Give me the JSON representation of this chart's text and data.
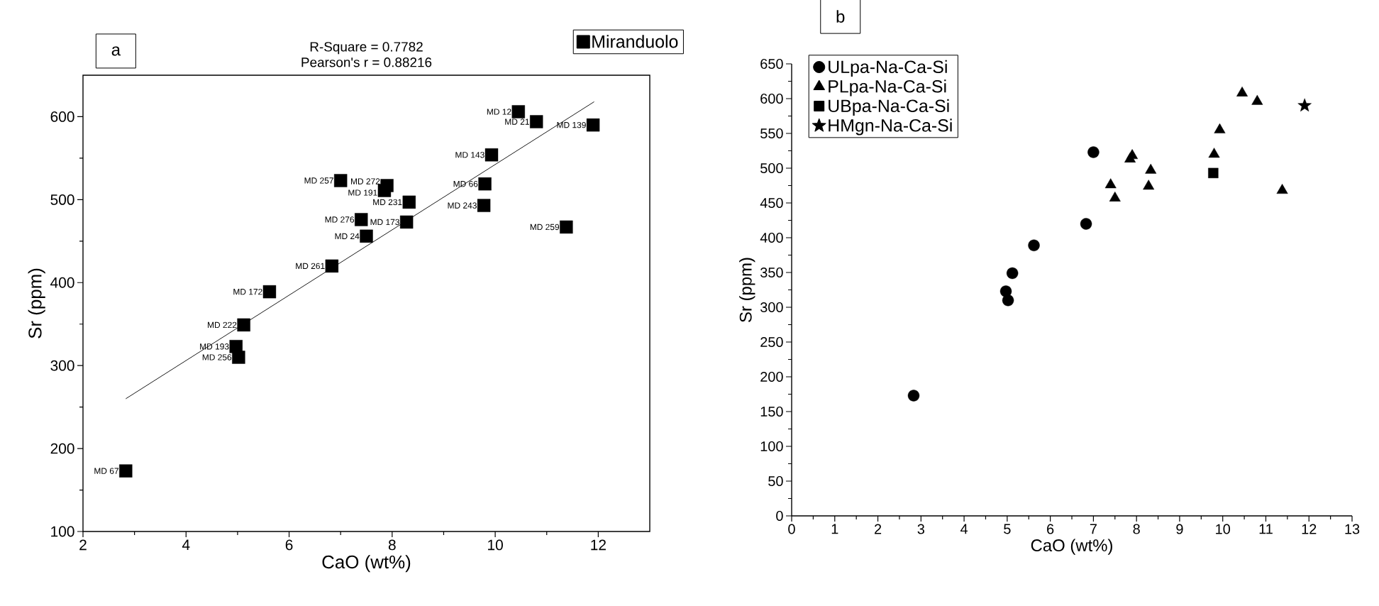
{
  "chart_data": [
    {
      "type": "scatter",
      "title": "R-Square = 0.7782",
      "subtitle": "Pearson's r = 0.88216",
      "xlabel": "CaO (wt%)",
      "ylabel": "Sr (ppm)",
      "xlim": [
        2,
        13
      ],
      "ylim": [
        100,
        650
      ],
      "xticks": [
        2,
        4,
        6,
        8,
        10,
        12
      ],
      "yticks": [
        100,
        200,
        300,
        400,
        500,
        600
      ],
      "legend": "top right",
      "series": [
        {
          "name": "Miranduolo",
          "type": "scatter",
          "marker": "square",
          "color": "#000000",
          "x": [
            10.45,
            10.8,
            11.9,
            9.93,
            9.8,
            9.78,
            11.38,
            7.0,
            7.9,
            7.85,
            8.33,
            7.4,
            8.28,
            7.5,
            6.83,
            5.62,
            5.12,
            4.97,
            5.02,
            2.83
          ],
          "values": [
            606,
            594,
            590,
            554,
            519,
            493,
            467,
            523,
            517,
            511,
            497,
            476,
            473,
            456,
            420,
            389,
            349,
            323,
            310,
            173
          ]
        },
        {
          "type": "line",
          "marker": "none",
          "color": "#000000",
          "x": [
            2.83,
            11.92
          ],
          "values": [
            260,
            618
          ]
        }
      ],
      "annotations": [
        "a",
        {
          "text": "MD 12",
          "x": 10.45,
          "y": 606
        },
        {
          "text": "MD 21",
          "x": 10.8,
          "y": 594
        },
        {
          "text": "MD 139",
          "x": 11.9,
          "y": 590
        },
        {
          "text": "MD 143",
          "x": 9.93,
          "y": 554
        },
        {
          "text": "MD 66",
          "x": 9.8,
          "y": 519
        },
        {
          "text": "MD 243",
          "x": 9.78,
          "y": 493
        },
        {
          "text": "MD 259",
          "x": 11.38,
          "y": 467
        },
        {
          "text": "MD 257",
          "x": 7.0,
          "y": 523
        },
        {
          "text": "MD 272",
          "x": 7.9,
          "y": 517
        },
        {
          "text": "MD 191",
          "x": 7.85,
          "y": 511
        },
        {
          "text": "MD 231",
          "x": 8.33,
          "y": 497
        },
        {
          "text": "MD 276",
          "x": 7.4,
          "y": 476
        },
        {
          "text": "MD 173",
          "x": 8.28,
          "y": 473
        },
        {
          "text": "MD 24",
          "x": 7.5,
          "y": 456
        },
        {
          "text": "MD 261",
          "x": 6.83,
          "y": 420
        },
        {
          "text": "MD 172",
          "x": 5.62,
          "y": 389
        },
        {
          "text": "MD 222",
          "x": 5.12,
          "y": 349
        },
        {
          "text": "MD 193",
          "x": 4.97,
          "y": 323
        },
        {
          "text": "MD 256",
          "x": 5.02,
          "y": 310
        },
        {
          "text": "MD 67",
          "x": 2.83,
          "y": 173
        }
      ]
    },
    {
      "type": "scatter",
      "xlabel": "CaO (wt%)",
      "ylabel": "Sr (ppm)",
      "xlim": [
        0,
        13
      ],
      "ylim": [
        0,
        650
      ],
      "xticks": [
        0,
        1,
        2,
        3,
        4,
        5,
        6,
        7,
        8,
        9,
        10,
        11,
        12,
        13
      ],
      "yticks": [
        0,
        50,
        100,
        150,
        200,
        250,
        300,
        350,
        400,
        450,
        500,
        550,
        600,
        650
      ],
      "legend": "top left",
      "series": [
        {
          "name": "ULpa-Na-Ca-Si",
          "type": "scatter",
          "marker": "circle",
          "color": "#000000",
          "x": [
            2.83,
            4.97,
            5.02,
            5.12,
            5.62,
            6.83,
            7.0
          ],
          "values": [
            173,
            323,
            310,
            349,
            389,
            420,
            523
          ]
        },
        {
          "name": "PLpa-Na-Ca-Si",
          "type": "scatter",
          "marker": "triangle",
          "color": "#000000",
          "x": [
            7.4,
            7.5,
            7.85,
            7.9,
            8.28,
            8.33,
            9.8,
            9.93,
            10.45,
            10.8,
            11.38
          ],
          "values": [
            476,
            457,
            513,
            518,
            474,
            497,
            520,
            555,
            608,
            596,
            468
          ]
        },
        {
          "name": "UBpa-Na-Ca-Si",
          "type": "scatter",
          "marker": "square",
          "color": "#000000",
          "x": [
            9.78
          ],
          "values": [
            493
          ]
        },
        {
          "name": "HMgn-Na-Ca-Si",
          "type": "scatter",
          "marker": "star",
          "color": "#000000",
          "x": [
            11.9
          ],
          "values": [
            590
          ]
        }
      ],
      "annotations": [
        "b"
      ]
    }
  ]
}
